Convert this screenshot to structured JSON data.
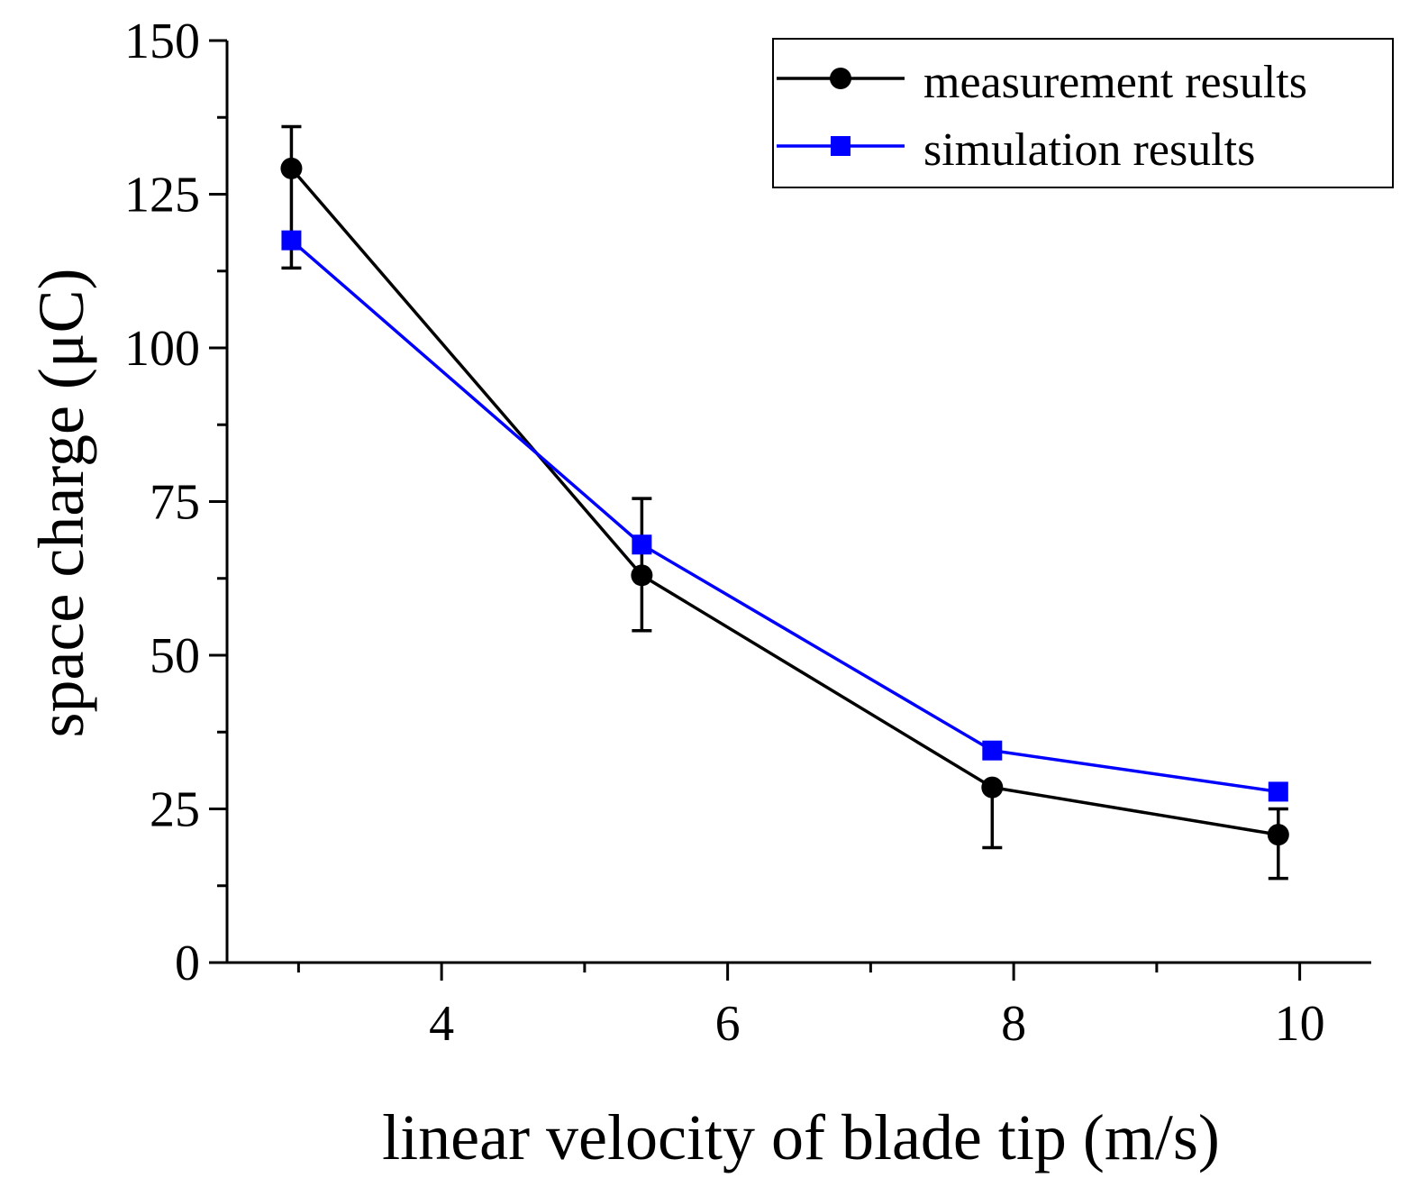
{
  "chart_data": {
    "type": "line",
    "title": "",
    "xlabel": "linear velocity of blade tip (m/s)",
    "ylabel": "space charge (μC)",
    "xlim": [
      2.5,
      10.5
    ],
    "ylim": [
      0,
      150
    ],
    "xticks": [
      4,
      6,
      8,
      10
    ],
    "xtick_labels": [
      "4",
      "6",
      "8",
      "10"
    ],
    "xminor": [
      3,
      5,
      7,
      9
    ],
    "yticks": [
      0,
      25,
      50,
      75,
      100,
      125,
      150
    ],
    "ytick_labels": [
      "0",
      "25",
      "50",
      "75",
      "100",
      "125",
      "150"
    ],
    "yminor": [
      12.5,
      37.5,
      62.5,
      87.5,
      112.5,
      137.5
    ],
    "grid": false,
    "legend_position": "top-right",
    "series": [
      {
        "name": "measurement results",
        "color": "#000000",
        "marker": "circle",
        "x": [
          2.95,
          5.4,
          7.85,
          9.85
        ],
        "y": [
          129.2,
          63,
          28.5,
          20.8
        ],
        "err_high": [
          136,
          75.5,
          28.5,
          25
        ],
        "err_low": [
          113,
          54,
          18.7,
          13.7
        ]
      },
      {
        "name": "simulation results",
        "color": "#0000ff",
        "marker": "square",
        "x": [
          2.95,
          5.4,
          7.85,
          9.85
        ],
        "y": [
          117.5,
          68,
          34.5,
          27.8
        ]
      }
    ]
  }
}
